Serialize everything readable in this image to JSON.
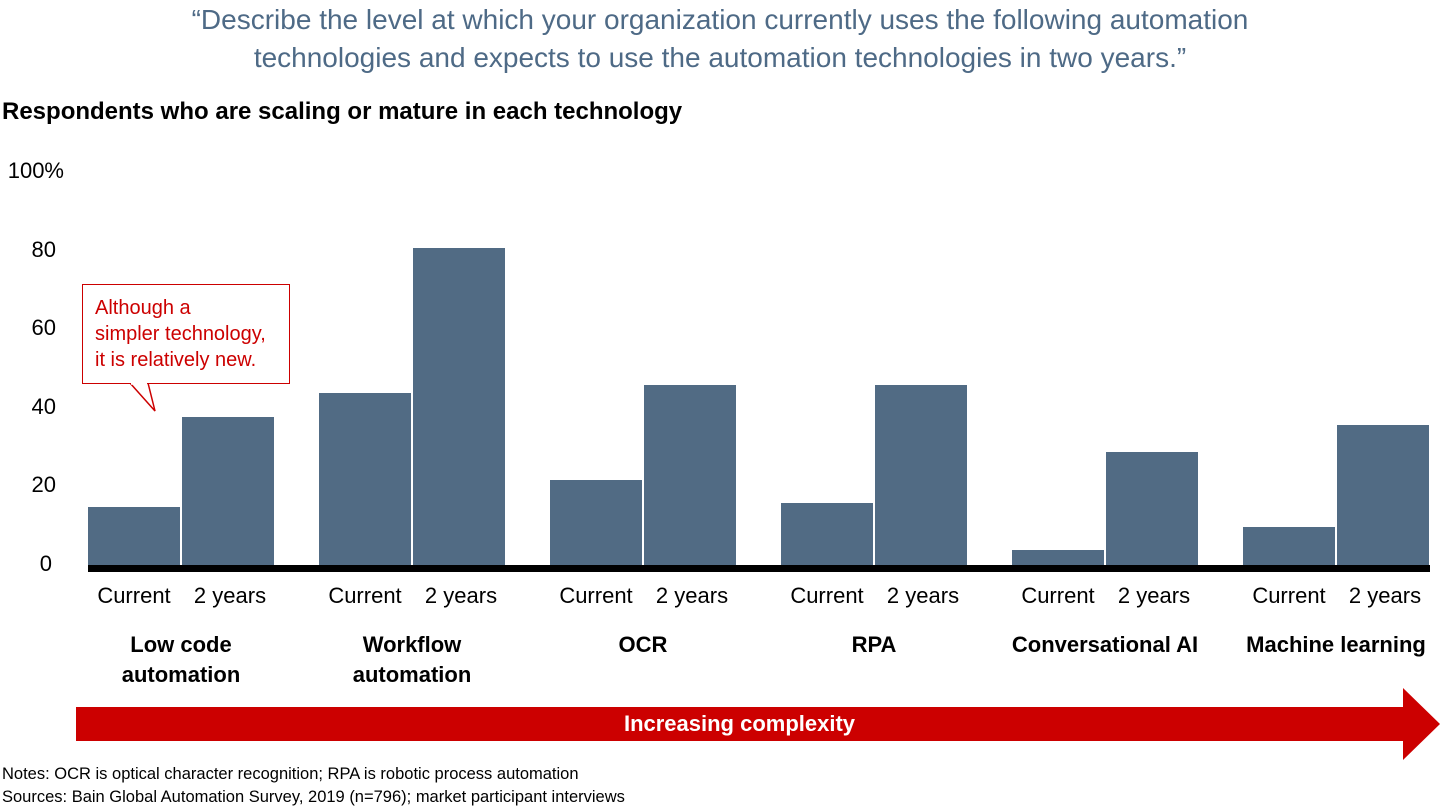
{
  "header": {
    "question": "“Describe the level at which your organization currently uses the following automation technologies and expects to use the automation technologies in two years.”",
    "question_line1": "“Describe the level at which your organization currently uses the following automation",
    "question_line2": "technologies and expects to use the automation technologies in two years.”",
    "subtitle": "Respondents who are scaling or mature in each technology"
  },
  "axis": {
    "ticks": [
      "100%",
      "80",
      "60",
      "40",
      "20",
      "0"
    ]
  },
  "bar_labels": {
    "current": "Current",
    "future": "2 years"
  },
  "groups": [
    {
      "label_line1": "Low code",
      "label_line2": "automation"
    },
    {
      "label_line1": "Workflow",
      "label_line2": "automation"
    },
    {
      "label_line1": "OCR",
      "label_line2": ""
    },
    {
      "label_line1": "RPA",
      "label_line2": ""
    },
    {
      "label_line1": "Conversational AI",
      "label_line2": ""
    },
    {
      "label_line1": "Machine learning",
      "label_line2": ""
    }
  ],
  "callout": {
    "line1": "Although a",
    "line2": "simpler technology,",
    "line3": "it is relatively new."
  },
  "arrow": {
    "label": "Increasing complexity"
  },
  "notes": {
    "notes": "Notes: OCR is optical character recognition; RPA is robotic process automation",
    "sources": "Sources: Bain Global Automation Survey, 2019 (n=796); market participant interviews"
  },
  "colors": {
    "bar": "#516b84",
    "accent_red": "#cc0000",
    "question_text": "#4e6a86"
  },
  "chart_data": {
    "type": "bar",
    "title": "Respondents who are scaling or mature in each technology",
    "subtitle": "“Describe the level at which your organization currently uses the following automation technologies and expects to use the automation technologies in two years.”",
    "categories": [
      "Low code automation",
      "Workflow automation",
      "OCR",
      "RPA",
      "Conversational AI",
      "Machine learning"
    ],
    "series": [
      {
        "name": "Current",
        "values": [
          15,
          44,
          22,
          16,
          4,
          10
        ]
      },
      {
        "name": "2 years",
        "values": [
          38,
          81,
          46,
          46,
          29,
          36
        ]
      }
    ],
    "xlabel": "Increasing complexity",
    "ylabel": "",
    "ylim": [
      0,
      100
    ],
    "yticks": [
      0,
      20,
      40,
      60,
      80,
      100
    ],
    "ytick_labels": [
      "0",
      "20",
      "40",
      "60",
      "80",
      "100%"
    ],
    "grid": false,
    "legend": "none (bar labels under each bar: Current, 2 years)",
    "annotations": [
      "Although a simpler technology, it is relatively new. (pointing to Low code automation)"
    ]
  }
}
